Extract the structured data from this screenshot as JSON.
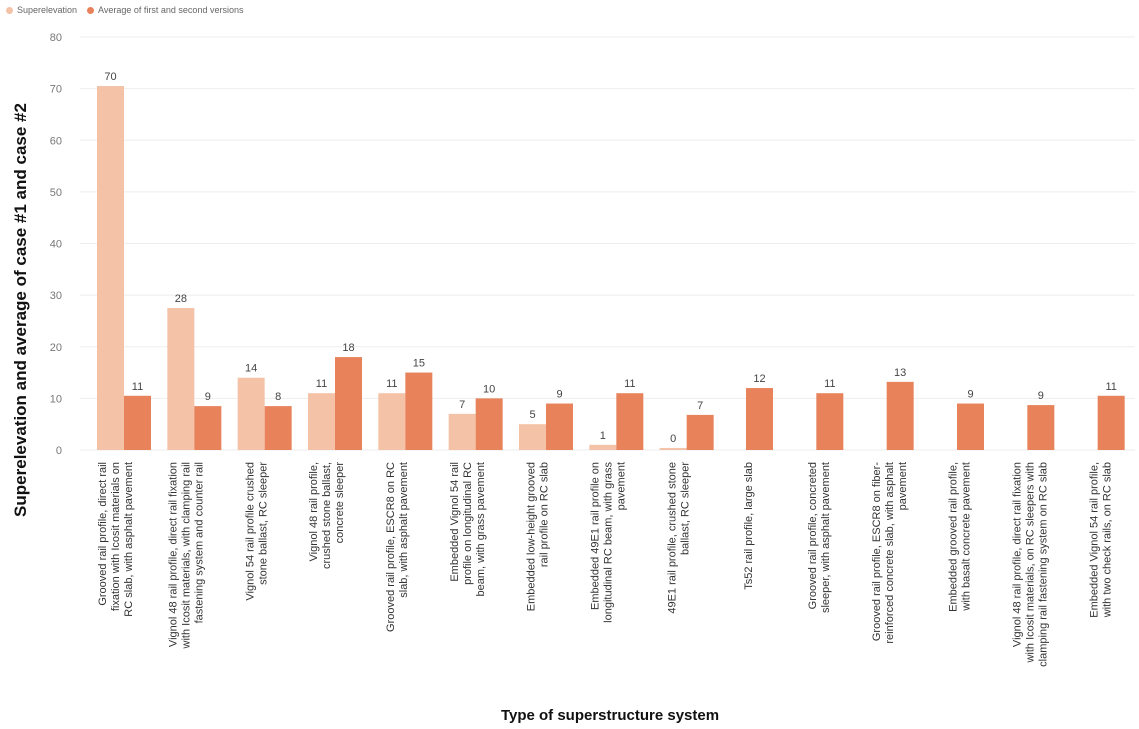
{
  "chart_data": {
    "type": "bar",
    "title": "",
    "xlabel": "Type of superstructure system",
    "ylabel": "Superelevation and average of case #1 and case #2",
    "ylim": [
      0,
      80
    ],
    "yticks": [
      "0",
      "10",
      "20",
      "30",
      "40",
      "50",
      "60",
      "70",
      "80"
    ],
    "grid": true,
    "legend_position": "top-left",
    "categories": [
      [
        "Grooved rail profile, direct rail",
        "fixation with Icosit materials on",
        "RC slab, with asphalt pavement"
      ],
      [
        "Vignol 48 rail profile, direct rail fixation",
        "with Icosit materials, with clamping rail",
        "fastening system and counter rail"
      ],
      [
        "Vignol 54 rail profile crushed",
        "stone ballast, RC sleeper"
      ],
      [
        "Vignol 48 rail profile,",
        "crushed stone ballast,",
        "concrete sleeper"
      ],
      [
        "Grooved rail profile, ESCR8 on RC",
        "slab, with asphalt pavement"
      ],
      [
        "Embedded Vignol 54 rail",
        "profile on longitudinal RC",
        "beam, with grass pavement"
      ],
      [
        "Embedded low-height grooved",
        "rail profile on RC slab"
      ],
      [
        "Embedded 49E1 rail profile on",
        "longitudinal RC beam, with grass",
        "pavement"
      ],
      [
        "49E1 rail profile, crushed stone",
        "ballast, RC sleeper"
      ],
      [
        "Ts52 rail profile, large slab"
      ],
      [
        "Grooved rail profile, concreted",
        "sleeper, with asphalt pavement"
      ],
      [
        "Grooved rail profile, ESCR8 on fiber-",
        "reinforced concrete slab, with asphalt",
        "pavement"
      ],
      [
        "Embedded grooved rail profile,",
        "with basalt concrete pavement"
      ],
      [
        "Vignol 48 rail profile, direct rail fixation",
        "with Icosit materials, on RC sleepers with",
        "clamping rail fastening system on RC slab"
      ],
      [
        "Embedded Vignol 54 rail profile,",
        "with two check rails, on RC slab"
      ]
    ],
    "series": [
      {
        "name": "Superelevation",
        "color": "#f4c2a6",
        "values": [
          70.5,
          27.5,
          14,
          11,
          11,
          7,
          5,
          1,
          0.4,
          null,
          null,
          null,
          null,
          null,
          null
        ],
        "labels": [
          "70",
          "28",
          "14",
          "11",
          "11",
          "7",
          "5",
          "1",
          "0",
          "",
          "",
          "",
          "",
          "",
          ""
        ]
      },
      {
        "name": "Average of first and second versions",
        "color": "#e8825b",
        "values": [
          10.5,
          8.5,
          8.5,
          18,
          15,
          10,
          9,
          11,
          6.8,
          12,
          11,
          13.2,
          9,
          8.7,
          10.5
        ],
        "labels": [
          "11",
          "9",
          "8",
          "18",
          "15",
          "10",
          "9",
          "11",
          "7",
          "12",
          "11",
          "13",
          "9",
          "9",
          "11"
        ]
      }
    ]
  }
}
